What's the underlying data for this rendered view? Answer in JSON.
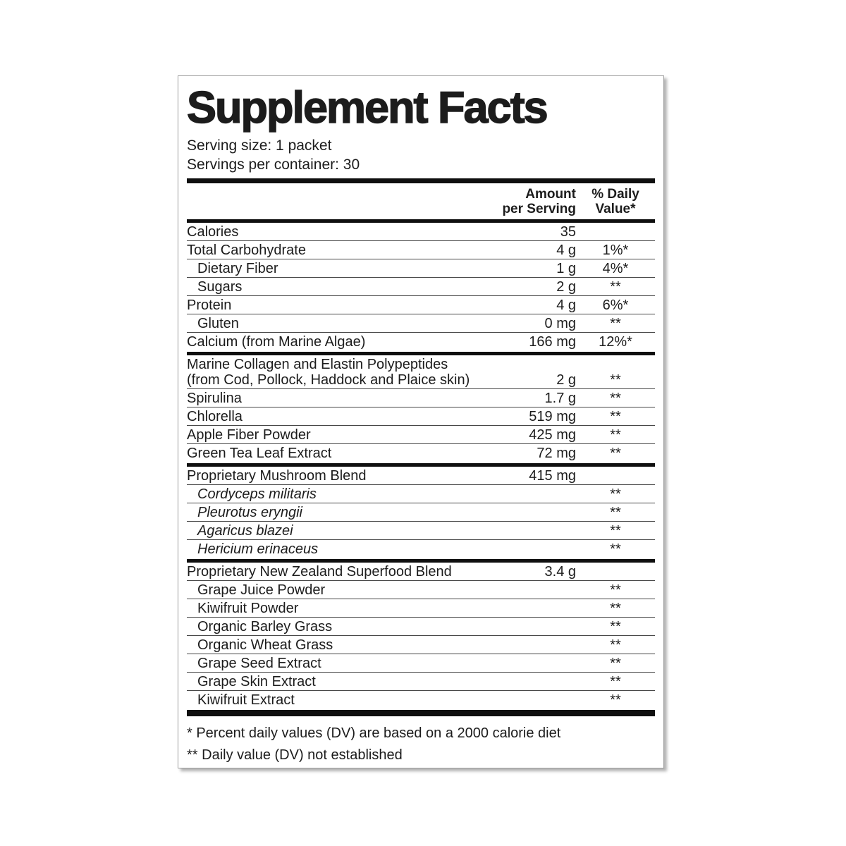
{
  "label": {
    "title": "Supplement Facts",
    "serving_size": "Serving size: 1 packet",
    "servings_per_container": "Servings per container: 30",
    "columns": {
      "amount_line1": "Amount",
      "amount_line2": "per Serving",
      "dv_line1": "% Daily",
      "dv_line2": "Value*"
    },
    "rows": [
      {
        "name": "Calories",
        "amount": "35",
        "dv": ""
      },
      {
        "name": "Total Carbohydrate",
        "amount": "4 g",
        "dv": "1%*"
      },
      {
        "name": "Dietary Fiber",
        "amount": "1 g",
        "dv": "4%*"
      },
      {
        "name": "Sugars",
        "amount": "2 g",
        "dv": "**"
      },
      {
        "name": "Protein",
        "amount": "4 g",
        "dv": "6%*"
      },
      {
        "name": "Gluten",
        "amount": "0 mg",
        "dv": "**"
      },
      {
        "name": "Calcium (from Marine Algae)",
        "amount": "166 mg",
        "dv": "12%*"
      },
      {
        "name": "Marine Collagen and Elastin Polypeptides",
        "name2": "(from Cod, Pollock, Haddock and Plaice skin)",
        "amount": "2 g",
        "dv": "**"
      },
      {
        "name": "Spirulina",
        "amount": "1.7 g",
        "dv": "**"
      },
      {
        "name": "Chlorella",
        "amount": "519 mg",
        "dv": "**"
      },
      {
        "name": "Apple Fiber Powder",
        "amount": "425 mg",
        "dv": "**"
      },
      {
        "name": "Green Tea Leaf Extract",
        "amount": "72 mg",
        "dv": "**"
      },
      {
        "name": "Proprietary Mushroom Blend",
        "amount": "415 mg",
        "dv": ""
      },
      {
        "name": "Cordyceps militaris",
        "amount": "",
        "dv": "**"
      },
      {
        "name": "Pleurotus eryngii",
        "amount": "",
        "dv": "**"
      },
      {
        "name": "Agaricus blazei",
        "amount": "",
        "dv": "**"
      },
      {
        "name": "Hericium erinaceus",
        "amount": "",
        "dv": "**"
      },
      {
        "name": "Proprietary New Zealand Superfood Blend",
        "amount": "3.4 g",
        "dv": ""
      },
      {
        "name": "Grape Juice Powder",
        "amount": "",
        "dv": "**"
      },
      {
        "name": "Kiwifruit Powder",
        "amount": "",
        "dv": "**"
      },
      {
        "name": "Organic Barley Grass",
        "amount": "",
        "dv": "**"
      },
      {
        "name": "Organic Wheat Grass",
        "amount": "",
        "dv": "**"
      },
      {
        "name": "Grape Seed Extract",
        "amount": "",
        "dv": "**"
      },
      {
        "name": "Grape Skin Extract",
        "amount": "",
        "dv": "**"
      },
      {
        "name": "Kiwifruit Extract",
        "amount": "",
        "dv": "**"
      }
    ],
    "footnotes": {
      "dv_basis": "* Percent daily values (DV) are based on a 2000 calorie diet",
      "dv_not_established": "** Daily value (DV) not established"
    },
    "colors": {
      "text": "#1c1c1c",
      "rule": "#474747",
      "bar": "#0f0f0f",
      "panel_border": "#9e9e9e",
      "background": "#ffffff"
    }
  }
}
